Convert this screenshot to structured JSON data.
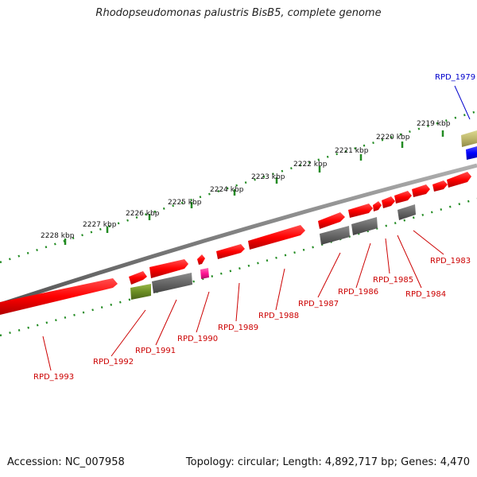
{
  "title": "Rhodopseudomonas palustris BisB5, complete genome",
  "footer": {
    "accession": "Accession: NC_007958",
    "topology": "Topology: circular; Length: 4,892,717 bp; Genes: 4,470"
  },
  "scale_labels": [
    "2219 kbp",
    "2220 kbp",
    "2221 kbp",
    "2222 kbp",
    "2223 kbp",
    "2224 kbp",
    "2225 kbp",
    "2226 kbp",
    "2227 kbp",
    "2228 kbp"
  ],
  "gene_labels": [
    "RPD_1979",
    "RPD_1983",
    "RPD_1984",
    "RPD_1985",
    "RPD_1986",
    "RPD_1987",
    "RPD_1988",
    "RPD_1989",
    "RPD_1990",
    "RPD_1991",
    "RPD_1992",
    "RPD_1993"
  ],
  "colors": {
    "cds": "#ff0000",
    "gene_label": "#cc0000",
    "highlight_label": "#0000cc",
    "backbone": "#808080",
    "ticks": "#228b22",
    "gray_feature": "#666666",
    "olive_feature": "#6b8e23",
    "pink_feature": "#ff1493",
    "khaki_feature": "#bdb76b",
    "blue_feature": "#0000ff"
  }
}
